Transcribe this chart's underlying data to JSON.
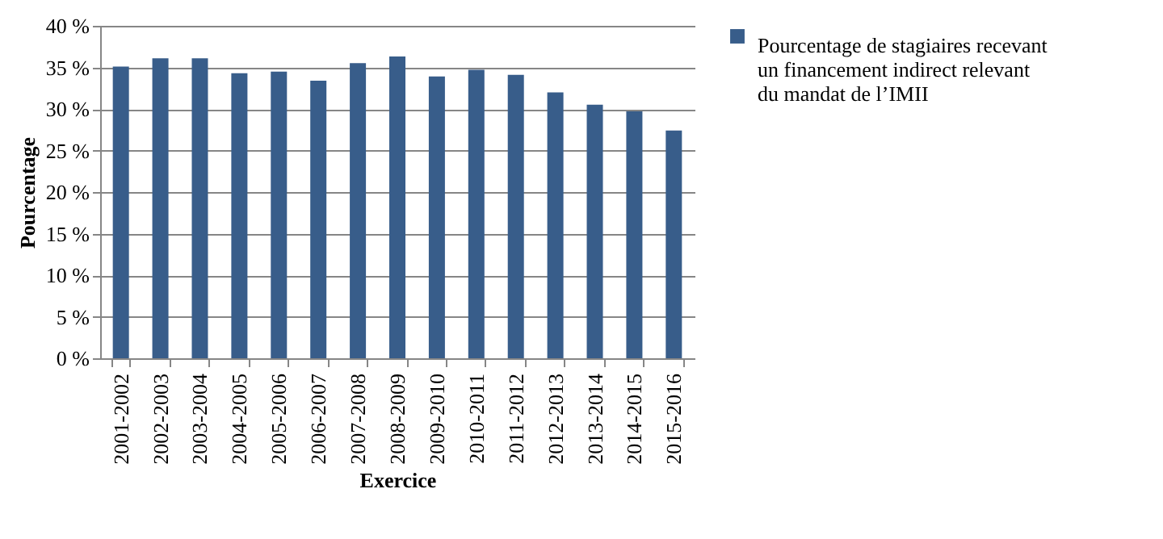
{
  "chart_data": {
    "type": "bar",
    "xlabel": "Exercice",
    "ylabel": "Pourcentage",
    "categories": [
      "2001-2002",
      "2002-2003",
      "2003-2004",
      "2004-2005",
      "2005-2006",
      "2006-2007",
      "2007-2008",
      "2008-2009",
      "2009-2010",
      "2010-2011",
      "2011-2012",
      "2012-2013",
      "2013-2014",
      "2014-2015",
      "2015-2016"
    ],
    "series": [
      {
        "name": "Pourcentage de stagiaires recevant un financement indirect relevant du mandat de l’IMII",
        "color": "#385d8a",
        "values": [
          35.1,
          36.1,
          36.1,
          34.3,
          34.5,
          33.4,
          35.5,
          36.3,
          33.9,
          34.7,
          34.1,
          32.0,
          30.5,
          29.7,
          27.4
        ]
      }
    ],
    "ylim": [
      0,
      40
    ],
    "yticks": [
      {
        "value": 0,
        "label": "0 %"
      },
      {
        "value": 5,
        "label": "5 %"
      },
      {
        "value": 10,
        "label": "10 %"
      },
      {
        "value": 15,
        "label": "15 %"
      },
      {
        "value": 20,
        "label": "20 %"
      },
      {
        "value": 25,
        "label": "25 %"
      },
      {
        "value": 30,
        "label": "30 %"
      },
      {
        "value": 35,
        "label": "35 %"
      },
      {
        "value": 40,
        "label": "40 %"
      }
    ],
    "grid": "y",
    "legend": "right"
  }
}
